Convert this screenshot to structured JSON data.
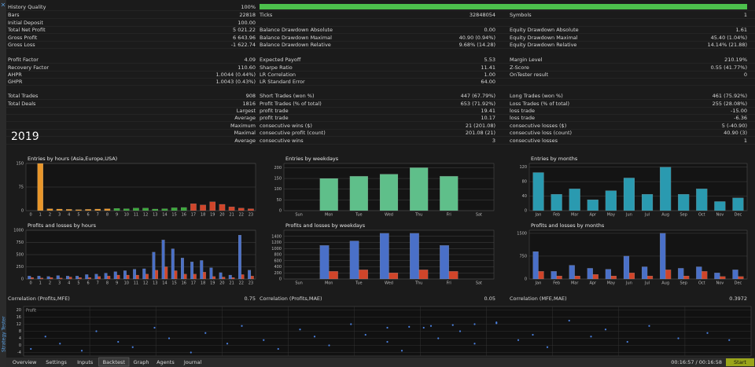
{
  "side_title": "Strategy Tester",
  "year": "2019",
  "stats": [
    {
      "a": [
        "History Quality",
        "100%"
      ]
    },
    {
      "a": [
        "Bars",
        "22818"
      ],
      "b": [
        "Ticks",
        "32848054"
      ],
      "c": [
        "Symbols",
        "1"
      ]
    },
    {
      "a": [
        "Initial Deposit",
        "100.00"
      ]
    },
    {
      "a": [
        "Total Net Profit",
        "5 021.22"
      ],
      "b": [
        "Balance Drawdown Absolute",
        "0.00"
      ],
      "c": [
        "Equity Drawdown Absolute",
        "1.61"
      ]
    },
    {
      "a": [
        "Gross Profit",
        "6 643.96"
      ],
      "b": [
        "Balance Drawdown Maximal",
        "40.90 (0.94%)"
      ],
      "c": [
        "Equity Drawdown Maximal",
        "45.40 (1.04%)"
      ]
    },
    {
      "a": [
        "Gross Loss",
        "-1 622.74"
      ],
      "b": [
        "Balance Drawdown Relative",
        "9.68% (14.28)"
      ],
      "c": [
        "Equity Drawdown Relative",
        "14.14% (21.88)"
      ]
    },
    {
      "a": [
        "Profit Factor",
        "4.09"
      ],
      "b": [
        "Expected Payoff",
        "5.53"
      ],
      "c": [
        "Margin Level",
        "210.19%"
      ]
    },
    {
      "a": [
        "Recovery Factor",
        "110.60"
      ],
      "b": [
        "Sharpe Ratio",
        "11.41"
      ],
      "c": [
        "Z-Score",
        "0.55 (41.77%)"
      ]
    },
    {
      "a": [
        "AHPR",
        "1.0044 (0.44%)"
      ],
      "b": [
        "LR Correlation",
        "1.00"
      ],
      "c": [
        "OnTester result",
        "0"
      ]
    },
    {
      "a": [
        "GHPR",
        "1.0043 (0.43%)"
      ],
      "b": [
        "LR Standard Error",
        "64.00"
      ]
    },
    {
      "a": [
        "Total Trades",
        "908"
      ],
      "b": [
        "Short Trades (won %)",
        "447 (67.79%)"
      ],
      "c": [
        "Long Trades (won %)",
        "461 (75.92%)"
      ]
    },
    {
      "a": [
        "Total Deals",
        "1816"
      ],
      "b": [
        "Profit Trades (% of total)",
        "653 (71.92%)"
      ],
      "c": [
        "Loss Trades (% of total)",
        "255 (28.08%)"
      ]
    },
    {
      "sub": "Largest",
      "b": [
        "profit trade",
        "19.41"
      ],
      "c": [
        "loss trade",
        "-15.00"
      ]
    },
    {
      "sub": "Average",
      "b": [
        "profit trade",
        "10.17"
      ],
      "c": [
        "loss trade",
        "-6.36"
      ]
    },
    {
      "sub": "Maximum",
      "b": [
        "consecutive wins ($)",
        "21 (201.08)"
      ],
      "c": [
        "consecutive losses ($)",
        "5 (-40.90)"
      ]
    },
    {
      "sub": "Maximal",
      "b": [
        "consecutive profit (count)",
        "201.08 (21)"
      ],
      "c": [
        "consecutive loss (count)",
        "40.90 (3)"
      ]
    },
    {
      "sub": "Average",
      "b": [
        "consecutive wins",
        "3"
      ],
      "c": [
        "consecutive losses",
        "1"
      ]
    }
  ],
  "charts": [
    {
      "title": "Entries by hours (Asia,Europe,USA)",
      "categories": [
        "0",
        "1",
        "2",
        "3",
        "4",
        "5",
        "6",
        "7",
        "8",
        "9",
        "10",
        "11",
        "12",
        "13",
        "14",
        "15",
        "16",
        "17",
        "18",
        "19",
        "20",
        "21",
        "22",
        "23"
      ],
      "ylim": [
        0,
        150
      ],
      "yticks": [
        0,
        75,
        150
      ],
      "series": [
        {
          "colors": [
            "#e8962a",
            "#e8962a",
            "#e8962a",
            "#e8962a",
            "#e8962a",
            "#e8962a",
            "#e8962a",
            "#e8962a",
            "#e8962a",
            "#3aa83a",
            "#3aa83a",
            "#3aa83a",
            "#3aa83a",
            "#3aa83a",
            "#3aa83a",
            "#3aa83a",
            "#3aa83a",
            "#d0452a",
            "#d0452a",
            "#d0452a",
            "#d0452a",
            "#d0452a",
            "#d0452a",
            "#d0452a"
          ],
          "values": [
            0,
            150,
            6,
            5,
            4,
            3,
            4,
            5,
            6,
            7,
            6,
            8,
            8,
            5,
            6,
            9,
            10,
            22,
            18,
            28,
            20,
            12,
            8,
            6
          ]
        }
      ]
    },
    {
      "title": "Entries by weekdays",
      "categories": [
        "Sun",
        "Mon",
        "Tue",
        "Wed",
        "Thu",
        "Fri",
        "Sat"
      ],
      "ylim": [
        0,
        220
      ],
      "yticks": [
        0,
        50,
        100,
        150,
        200
      ],
      "series": [
        {
          "color": "#5fbf8a",
          "values": [
            0,
            150,
            160,
            170,
            200,
            160,
            0
          ]
        }
      ]
    },
    {
      "title": "Entries by months",
      "categories": [
        "Jan",
        "Feb",
        "Mar",
        "Apr",
        "May",
        "Jun",
        "Jul",
        "Aug",
        "Sep",
        "Oct",
        "Nov",
        "Dec"
      ],
      "ylim": [
        0,
        130
      ],
      "yticks": [
        0,
        40,
        80,
        120
      ],
      "series": [
        {
          "color": "#2a9ab0",
          "values": [
            105,
            45,
            60,
            30,
            55,
            90,
            45,
            120,
            45,
            60,
            25,
            35
          ]
        }
      ]
    },
    {
      "title": "Profits and losses by hours",
      "categories": [
        "0",
        "1",
        "2",
        "3",
        "4",
        "5",
        "6",
        "7",
        "8",
        "9",
        "10",
        "11",
        "12",
        "13",
        "14",
        "15",
        "16",
        "17",
        "18",
        "19",
        "20",
        "21",
        "22",
        "23"
      ],
      "ylim": [
        0,
        1000
      ],
      "yticks": [
        0,
        250,
        500,
        750,
        1000
      ],
      "series": [
        {
          "color": "#4a70c8",
          "values": [
            60,
            60,
            50,
            70,
            60,
            60,
            90,
            100,
            120,
            150,
            170,
            200,
            210,
            550,
            800,
            620,
            430,
            350,
            380,
            230,
            130,
            80,
            900,
            180
          ]
        },
        {
          "color": "#d0452a",
          "values": [
            30,
            20,
            30,
            20,
            40,
            30,
            30,
            50,
            60,
            80,
            80,
            80,
            100,
            180,
            250,
            170,
            100,
            100,
            140,
            50,
            40,
            30,
            90,
            60
          ]
        }
      ]
    },
    {
      "title": "Profits and losses by weekdays",
      "categories": [
        "Sun",
        "Mon",
        "Tue",
        "Wed",
        "Thu",
        "Fri",
        "Sat"
      ],
      "ylim": [
        0,
        1600
      ],
      "yticks": [
        0,
        200,
        400,
        600,
        800,
        1000,
        1200,
        1400
      ],
      "series": [
        {
          "color": "#4a70c8",
          "values": [
            0,
            1100,
            1250,
            1500,
            1500,
            1100,
            0
          ]
        },
        {
          "color": "#d0452a",
          "values": [
            0,
            250,
            300,
            200,
            300,
            250,
            0
          ]
        }
      ]
    },
    {
      "title": "Profits and losses by months",
      "categories": [
        "Jan",
        "Feb",
        "Mar",
        "Apr",
        "May",
        "Jun",
        "Jul",
        "Aug",
        "Sep",
        "Oct",
        "Nov",
        "Dec"
      ],
      "ylim": [
        0,
        1600
      ],
      "yticks": [
        0,
        750,
        1500
      ],
      "series": [
        {
          "color": "#4a70c8",
          "values": [
            900,
            250,
            450,
            350,
            320,
            750,
            400,
            1500,
            350,
            400,
            200,
            300
          ]
        },
        {
          "color": "#d0452a",
          "values": [
            250,
            100,
            100,
            150,
            100,
            200,
            100,
            300,
            100,
            250,
            80,
            80
          ]
        }
      ]
    }
  ],
  "correlations": [
    [
      "Correlation (Profits,MFE)",
      "0.75"
    ],
    [
      "Correlation (Profits,MAE)",
      "0.05"
    ],
    [
      "Correlation (MFE,MAE)",
      "0.3972"
    ]
  ],
  "scatter": {
    "title": "Profit",
    "ylim": [
      -6,
      22
    ],
    "yticks": [
      -4,
      0,
      4,
      8,
      12,
      16,
      20
    ],
    "xlim": [
      0,
      100
    ],
    "x": [
      1,
      3,
      5,
      8,
      10,
      13,
      15,
      18,
      20,
      23,
      25,
      28,
      30,
      33,
      35,
      38,
      40,
      42,
      45,
      47,
      50,
      52,
      55,
      57,
      60,
      62,
      65,
      68,
      70,
      72,
      75,
      78,
      80,
      83,
      86,
      90,
      94,
      97,
      50,
      53,
      56,
      59,
      62,
      65
    ],
    "y": [
      -2,
      5,
      1,
      -3,
      8,
      2,
      -1,
      10,
      4,
      -4,
      7,
      1,
      11,
      3,
      -2,
      9,
      5,
      0,
      12,
      6,
      2,
      -3,
      10,
      4,
      8,
      1,
      13,
      3,
      6,
      -1,
      14,
      5,
      9,
      2,
      11,
      4,
      7,
      3,
      10,
      10.5,
      11,
      11.5,
      12,
      12.5
    ]
  },
  "tabs": [
    "Overview",
    "Settings",
    "Inputs",
    "Backtest",
    "Graph",
    "Agents",
    "Journal"
  ],
  "active_tab": "Backtest",
  "time": "00:16:57 / 00:16:58",
  "start": "Start"
}
